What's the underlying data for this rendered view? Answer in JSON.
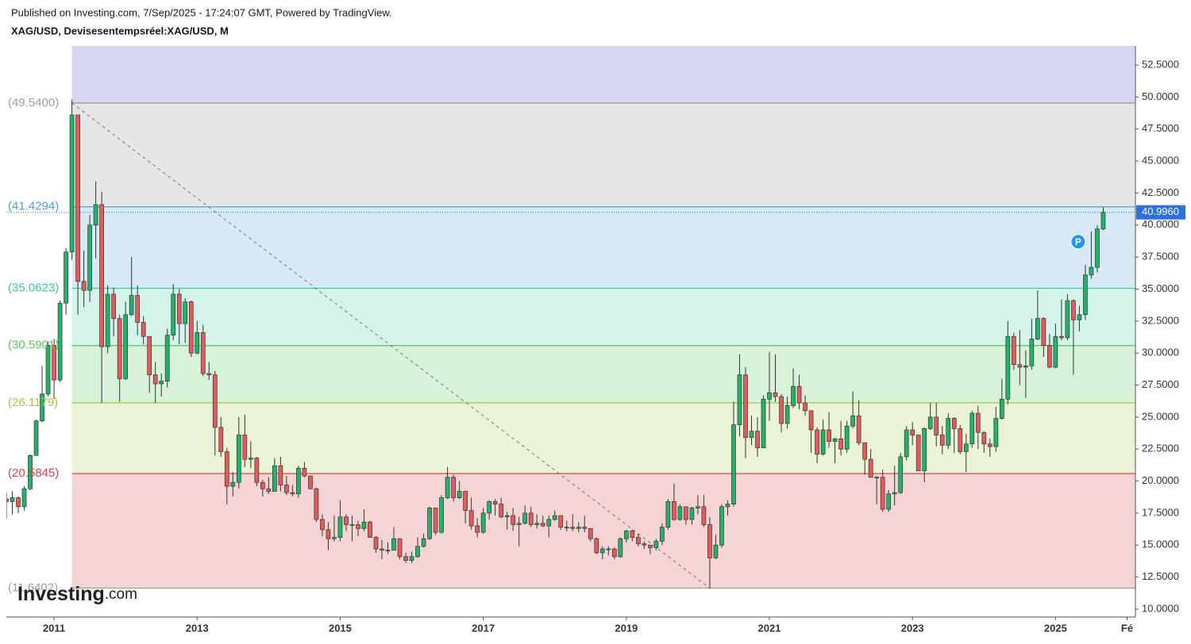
{
  "chart_data": {
    "type": "candlestick",
    "published": "Published on Investing.com, 7/Sep/2025 - 17:24:07 GMT, Powered by TradingView.",
    "title": "XAG/USD, Devisesentempsréel:XAG/USD, M",
    "logo": {
      "brand": "Investing",
      "suffix": ".com"
    },
    "marker": "P",
    "up_color": "#22b36a",
    "down_color": "#e45b5b",
    "ylim": [
      9.38,
      53.99
    ],
    "yticks": [
      {
        "value": 10,
        "label": "10.0000"
      },
      {
        "value": 12.5,
        "label": "12.5000"
      },
      {
        "value": 15,
        "label": "15.0000"
      },
      {
        "value": 17.5,
        "label": "17.5000"
      },
      {
        "value": 20,
        "label": "20.0000"
      },
      {
        "value": 22.5,
        "label": "22.5000"
      },
      {
        "value": 25,
        "label": "25.0000"
      },
      {
        "value": 27.5,
        "label": "27.5000"
      },
      {
        "value": 30,
        "label": "30.0000"
      },
      {
        "value": 32.5,
        "label": "32.5000"
      },
      {
        "value": 35,
        "label": "35.0000"
      },
      {
        "value": 37.5,
        "label": "37.5000"
      },
      {
        "value": 40,
        "label": "40.0000"
      },
      {
        "value": 42.5,
        "label": "42.5000"
      },
      {
        "value": 45,
        "label": "45.0000"
      },
      {
        "value": 47.5,
        "label": "47.5000"
      },
      {
        "value": 50,
        "label": "50.0000"
      },
      {
        "value": 52.5,
        "label": "52.5000"
      }
    ],
    "xlim": [
      0,
      189.4
    ],
    "xticks": [
      {
        "value": 8,
        "label": "2011"
      },
      {
        "value": 32,
        "label": "2013"
      },
      {
        "value": 56,
        "label": "2015"
      },
      {
        "value": 80,
        "label": "2017"
      },
      {
        "value": 104,
        "label": "2019"
      },
      {
        "value": 128,
        "label": "2021"
      },
      {
        "value": 152,
        "label": "2023"
      },
      {
        "value": 176,
        "label": "2025"
      },
      {
        "value": 188,
        "label": "Fé"
      }
    ],
    "fib_levels": [
      {
        "value": 49.54,
        "label": "(49.5400)",
        "color": "#9e9e9e",
        "fill": "#d5d5f4"
      },
      {
        "value": 41.4294,
        "label": "(41.4294)",
        "color": "#4fa3d6",
        "fill": "#e6e6e6"
      },
      {
        "value": 35.0623,
        "label": "(35.0623)",
        "color": "#3ec9a0",
        "fill": "#d6e9f4"
      },
      {
        "value": 30.5901,
        "label": "(30.5901)",
        "color": "#5cc95c",
        "fill": "#d4f3ea"
      },
      {
        "value": 26.1179,
        "label": "(26.1179)",
        "color": "#9ccc3c",
        "fill": "#d7f2d8"
      },
      {
        "value": 20.5845,
        "label": "(20.5845)",
        "color": "#d9434a",
        "fill": "#ebf3d6"
      },
      {
        "value": 11.6402,
        "label": "(11.6402)",
        "color": "#9e9e9e",
        "fill": "#f4d4d4"
      }
    ],
    "trend_line": {
      "from": 11,
      "to": 118
    },
    "last_price": {
      "value": 40.996,
      "label": "40.9960",
      "color": "#2f6fe0"
    },
    "candles": [
      [
        18.6,
        19.1,
        17.1,
        18.4
      ],
      [
        18.4,
        19.2,
        17.4,
        18.7
      ],
      [
        18.7,
        18.8,
        17.5,
        18.0
      ],
      [
        18.0,
        19.6,
        17.7,
        19.4
      ],
      [
        19.4,
        22.1,
        19.3,
        22.0
      ],
      [
        22.0,
        24.8,
        22.0,
        24.7
      ],
      [
        24.7,
        29.0,
        24.6,
        26.8
      ],
      [
        26.8,
        30.9,
        26.6,
        30.6
      ],
      [
        30.6,
        31.1,
        26.4,
        27.9
      ],
      [
        27.9,
        34.1,
        27.7,
        33.9
      ],
      [
        33.9,
        38.2,
        33.0,
        37.9
      ],
      [
        37.9,
        49.8,
        37.3,
        48.6
      ],
      [
        48.6,
        48.6,
        33.0,
        35.6
      ],
      [
        35.6,
        38.0,
        33.6,
        34.9
      ],
      [
        34.9,
        40.8,
        34.0,
        40.0
      ],
      [
        40.0,
        43.4,
        37.4,
        41.6
      ],
      [
        41.6,
        42.6,
        26.1,
        30.5
      ],
      [
        30.5,
        35.3,
        30.0,
        34.6
      ],
      [
        34.6,
        35.1,
        31.3,
        32.7
      ],
      [
        32.7,
        33.0,
        26.2,
        28.0
      ],
      [
        28.0,
        34.0,
        27.9,
        33.0
      ],
      [
        33.0,
        37.5,
        32.9,
        34.5
      ],
      [
        34.5,
        35.3,
        31.4,
        32.4
      ],
      [
        32.4,
        32.9,
        30.7,
        31.3
      ],
      [
        31.3,
        31.3,
        26.9,
        28.3
      ],
      [
        28.3,
        29.3,
        26.1,
        27.6
      ],
      [
        27.6,
        28.4,
        26.6,
        27.8
      ],
      [
        27.8,
        31.9,
        27.3,
        31.4
      ],
      [
        31.4,
        35.4,
        31.0,
        34.6
      ],
      [
        34.6,
        35.0,
        30.7,
        32.3
      ],
      [
        32.3,
        34.3,
        30.8,
        34.0
      ],
      [
        34.0,
        34.1,
        29.7,
        30.0
      ],
      [
        30.0,
        32.5,
        29.9,
        31.6
      ],
      [
        31.6,
        32.2,
        28.2,
        28.4
      ],
      [
        28.4,
        29.3,
        27.9,
        28.3
      ],
      [
        28.3,
        28.6,
        22.0,
        24.2
      ],
      [
        24.2,
        25.0,
        21.9,
        22.3
      ],
      [
        22.3,
        22.6,
        18.2,
        19.6
      ],
      [
        19.6,
        20.7,
        18.8,
        19.9
      ],
      [
        19.9,
        25.0,
        19.4,
        23.6
      ],
      [
        23.6,
        25.2,
        21.1,
        21.7
      ],
      [
        21.7,
        23.1,
        21.0,
        21.8
      ],
      [
        21.8,
        21.9,
        19.6,
        19.9
      ],
      [
        19.9,
        20.1,
        18.8,
        19.4
      ],
      [
        19.4,
        20.3,
        19.0,
        19.2
      ],
      [
        19.2,
        21.8,
        19.2,
        21.2
      ],
      [
        21.2,
        21.9,
        19.2,
        19.7
      ],
      [
        19.7,
        20.4,
        18.9,
        19.1
      ],
      [
        19.1,
        19.7,
        18.8,
        19.0
      ],
      [
        19.0,
        21.2,
        18.7,
        21.0
      ],
      [
        21.0,
        21.5,
        20.3,
        20.4
      ],
      [
        20.4,
        20.4,
        19.4,
        19.4
      ],
      [
        19.4,
        19.5,
        16.8,
        17.0
      ],
      [
        17.0,
        17.4,
        15.7,
        16.2
      ],
      [
        16.2,
        16.8,
        14.6,
        15.5
      ],
      [
        15.5,
        17.3,
        15.3,
        15.6
      ],
      [
        15.6,
        18.5,
        15.3,
        17.2
      ],
      [
        17.2,
        17.4,
        16.1,
        16.6
      ],
      [
        16.6,
        17.3,
        15.3,
        16.6
      ],
      [
        16.6,
        16.9,
        15.7,
        16.3
      ],
      [
        16.3,
        17.8,
        16.1,
        16.8
      ],
      [
        16.8,
        16.9,
        15.6,
        15.6
      ],
      [
        15.6,
        15.7,
        14.4,
        14.7
      ],
      [
        14.7,
        15.4,
        13.9,
        14.6
      ],
      [
        14.6,
        15.2,
        14.3,
        14.6
      ],
      [
        14.6,
        16.4,
        14.6,
        15.5
      ],
      [
        15.5,
        15.5,
        13.9,
        14.1
      ],
      [
        14.1,
        14.4,
        13.6,
        13.8
      ],
      [
        13.8,
        14.5,
        13.6,
        14.1
      ],
      [
        14.1,
        15.6,
        14.0,
        14.9
      ],
      [
        14.9,
        15.9,
        14.8,
        15.5
      ],
      [
        15.5,
        18.0,
        15.4,
        17.9
      ],
      [
        17.9,
        17.9,
        15.8,
        16.0
      ],
      [
        16.0,
        18.9,
        15.9,
        18.7
      ],
      [
        18.7,
        21.1,
        18.6,
        20.3
      ],
      [
        20.3,
        20.5,
        18.4,
        18.7
      ],
      [
        18.7,
        20.0,
        18.6,
        19.2
      ],
      [
        19.2,
        19.2,
        16.7,
        17.7
      ],
      [
        17.7,
        18.7,
        16.2,
        16.5
      ],
      [
        16.5,
        17.1,
        15.6,
        16.0
      ],
      [
        16.0,
        17.9,
        15.9,
        17.5
      ],
      [
        17.5,
        18.5,
        17.0,
        18.4
      ],
      [
        18.4,
        18.6,
        17.3,
        18.2
      ],
      [
        18.2,
        18.7,
        17.1,
        17.2
      ],
      [
        17.2,
        17.6,
        16.2,
        17.3
      ],
      [
        17.3,
        17.9,
        16.1,
        16.6
      ],
      [
        16.6,
        17.2,
        14.9,
        16.7
      ],
      [
        16.7,
        18.1,
        16.6,
        17.5
      ],
      [
        17.5,
        18.0,
        16.4,
        16.6
      ],
      [
        16.6,
        17.4,
        16.3,
        16.7
      ],
      [
        16.7,
        17.3,
        16.4,
        16.5
      ],
      [
        16.5,
        17.3,
        15.6,
        17.0
      ],
      [
        17.0,
        17.7,
        16.9,
        17.3
      ],
      [
        17.3,
        17.3,
        16.2,
        16.4
      ],
      [
        16.4,
        16.9,
        16.1,
        16.4
      ],
      [
        16.4,
        17.4,
        16.1,
        16.3
      ],
      [
        16.3,
        16.8,
        16.0,
        16.4
      ],
      [
        16.4,
        17.3,
        16.0,
        16.3
      ],
      [
        16.3,
        16.3,
        15.3,
        15.5
      ],
      [
        15.5,
        15.6,
        14.3,
        14.4
      ],
      [
        14.4,
        14.9,
        13.9,
        14.7
      ],
      [
        14.7,
        14.9,
        14.2,
        14.7
      ],
      [
        14.7,
        14.8,
        13.9,
        14.1
      ],
      [
        14.1,
        15.6,
        14.0,
        15.5
      ],
      [
        15.5,
        16.2,
        15.2,
        16.1
      ],
      [
        16.1,
        16.2,
        15.3,
        15.6
      ],
      [
        15.6,
        15.9,
        14.9,
        15.1
      ],
      [
        15.1,
        15.3,
        14.7,
        15.0
      ],
      [
        15.0,
        15.0,
        14.3,
        14.8
      ],
      [
        14.8,
        15.5,
        14.6,
        15.3
      ],
      [
        15.3,
        16.7,
        15.0,
        16.4
      ],
      [
        16.4,
        18.6,
        16.2,
        18.4
      ],
      [
        18.4,
        19.8,
        16.9,
        17.0
      ],
      [
        17.0,
        18.2,
        16.9,
        18.0
      ],
      [
        18.0,
        18.0,
        16.6,
        17.0
      ],
      [
        17.0,
        18.0,
        16.6,
        17.9
      ],
      [
        17.9,
        18.9,
        17.4,
        18.0
      ],
      [
        18.0,
        18.9,
        16.4,
        16.6
      ],
      [
        16.6,
        17.2,
        11.6,
        14.0
      ],
      [
        14.0,
        15.8,
        13.9,
        15.0
      ],
      [
        15.0,
        18.2,
        14.8,
        18.0
      ],
      [
        18.0,
        18.5,
        17.3,
        18.2
      ],
      [
        18.2,
        26.2,
        18.0,
        24.4
      ],
      [
        24.4,
        29.9,
        23.5,
        28.3
      ],
      [
        28.3,
        28.9,
        21.8,
        23.4
      ],
      [
        23.4,
        25.1,
        22.8,
        23.9
      ],
      [
        23.9,
        25.0,
        21.9,
        22.6
      ],
      [
        22.6,
        26.7,
        22.6,
        26.4
      ],
      [
        26.4,
        30.1,
        24.7,
        26.9
      ],
      [
        26.9,
        29.9,
        26.2,
        26.6
      ],
      [
        26.6,
        26.8,
        23.8,
        24.5
      ],
      [
        24.5,
        26.6,
        24.1,
        25.9
      ],
      [
        25.9,
        28.8,
        25.7,
        27.4
      ],
      [
        27.4,
        28.3,
        25.6,
        26.1
      ],
      [
        26.1,
        26.7,
        25.1,
        25.5
      ],
      [
        25.5,
        25.5,
        22.2,
        24.0
      ],
      [
        24.0,
        24.2,
        21.4,
        22.1
      ],
      [
        22.1,
        24.8,
        22.0,
        24.0
      ],
      [
        24.0,
        25.4,
        22.6,
        23.1
      ],
      [
        23.1,
        23.4,
        21.4,
        23.3
      ],
      [
        23.3,
        24.7,
        22.0,
        22.5
      ],
      [
        22.5,
        24.7,
        22.2,
        24.3
      ],
      [
        24.3,
        27.0,
        24.1,
        25.1
      ],
      [
        25.1,
        26.3,
        22.8,
        23.0
      ],
      [
        23.0,
        23.0,
        20.5,
        21.7
      ],
      [
        21.7,
        22.5,
        20.3,
        20.3
      ],
      [
        20.3,
        20.4,
        18.2,
        20.3
      ],
      [
        20.3,
        20.9,
        17.6,
        17.8
      ],
      [
        17.8,
        19.3,
        17.6,
        19.0
      ],
      [
        19.0,
        21.2,
        18.1,
        19.1
      ],
      [
        19.1,
        22.2,
        19.0,
        21.9
      ],
      [
        21.9,
        24.3,
        21.6,
        24.0
      ],
      [
        24.0,
        24.6,
        22.8,
        23.6
      ],
      [
        23.6,
        23.6,
        20.8,
        20.8
      ],
      [
        20.8,
        24.2,
        19.9,
        24.1
      ],
      [
        24.1,
        26.1,
        24.0,
        25.0
      ],
      [
        25.0,
        26.1,
        22.7,
        23.6
      ],
      [
        23.6,
        24.3,
        22.1,
        22.8
      ],
      [
        22.8,
        25.3,
        22.5,
        24.9
      ],
      [
        24.9,
        25.0,
        22.2,
        24.1
      ],
      [
        24.1,
        24.4,
        22.1,
        22.3
      ],
      [
        22.3,
        23.7,
        20.7,
        22.9
      ],
      [
        22.9,
        25.5,
        22.6,
        25.3
      ],
      [
        25.3,
        25.9,
        22.5,
        23.8
      ],
      [
        23.8,
        23.9,
        22.2,
        22.9
      ],
      [
        22.9,
        23.3,
        21.9,
        22.7
      ],
      [
        22.7,
        25.8,
        22.3,
        24.9
      ],
      [
        24.9,
        28.0,
        24.8,
        26.4
      ],
      [
        26.4,
        32.5,
        26.0,
        31.3
      ],
      [
        31.3,
        31.6,
        28.7,
        29.1
      ],
      [
        29.1,
        31.8,
        27.5,
        28.9
      ],
      [
        28.9,
        30.2,
        26.5,
        29.0
      ],
      [
        29.0,
        32.7,
        28.7,
        31.1
      ],
      [
        31.1,
        34.9,
        31.0,
        32.7
      ],
      [
        32.7,
        32.8,
        29.7,
        30.6
      ],
      [
        30.6,
        31.5,
        28.8,
        28.9
      ],
      [
        28.9,
        32.3,
        28.8,
        31.3
      ],
      [
        31.3,
        34.2,
        31.0,
        31.2
      ],
      [
        31.2,
        34.6,
        31.0,
        34.1
      ],
      [
        34.1,
        34.2,
        28.3,
        32.6
      ],
      [
        32.6,
        33.7,
        31.7,
        33.0
      ],
      [
        33.0,
        36.9,
        32.6,
        36.1
      ],
      [
        36.1,
        39.5,
        35.8,
        36.7
      ],
      [
        36.7,
        40.0,
        36.3,
        39.7
      ],
      [
        39.7,
        41.4,
        39.6,
        40.996
      ]
    ]
  }
}
